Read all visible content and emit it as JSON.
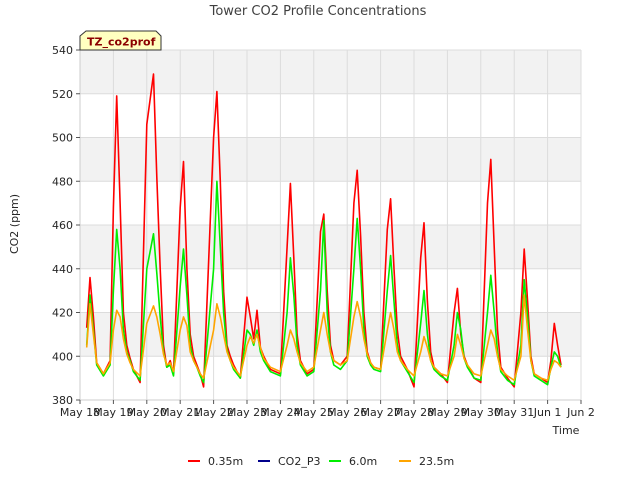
{
  "chart_data": {
    "type": "line",
    "title": "Tower CO2 Profile Concentrations",
    "xlabel": "Time",
    "ylabel": "CO2 (ppm)",
    "tag": "TZ_co2prof",
    "ylim": [
      380,
      540
    ],
    "yticks": [
      380,
      400,
      420,
      440,
      460,
      480,
      500,
      520,
      540
    ],
    "xlim": [
      0,
      15
    ],
    "xticks": [
      0,
      1,
      2,
      3,
      4,
      5,
      6,
      7,
      8,
      9,
      10,
      11,
      12,
      13,
      14,
      15
    ],
    "xtick_labels": [
      "May 18",
      "May 19",
      "May 20",
      "May 21",
      "May 22",
      "May 23",
      "May 24",
      "May 25",
      "May 26",
      "May 27",
      "May 28",
      "May 29",
      "May 30",
      "May 31",
      "Jun 1",
      "Jun 2"
    ],
    "grid": true,
    "x_unit": "days since May 18",
    "series": [
      {
        "name": "0.35m",
        "color": "#ff0000",
        "x": [
          0.2,
          0.3,
          0.4,
          0.5,
          0.7,
          0.9,
          1.0,
          1.1,
          1.2,
          1.3,
          1.4,
          1.5,
          1.6,
          1.8,
          2.0,
          2.2,
          2.3,
          2.4,
          2.5,
          2.6,
          2.7,
          2.8,
          3.0,
          3.1,
          3.2,
          3.3,
          3.4,
          3.5,
          3.6,
          3.7,
          4.0,
          4.1,
          4.2,
          4.3,
          4.4,
          4.5,
          4.6,
          4.8,
          5.0,
          5.1,
          5.2,
          5.3,
          5.4,
          5.5,
          5.7,
          6.0,
          6.2,
          6.3,
          6.4,
          6.5,
          6.6,
          6.8,
          7.0,
          7.2,
          7.3,
          7.4,
          7.5,
          7.6,
          7.8,
          8.0,
          8.2,
          8.3,
          8.4,
          8.5,
          8.6,
          8.7,
          8.8,
          9.0,
          9.2,
          9.3,
          9.4,
          9.5,
          9.6,
          9.8,
          10.0,
          10.2,
          10.3,
          10.4,
          10.5,
          10.6,
          10.8,
          11.0,
          11.2,
          11.3,
          11.4,
          11.5,
          11.6,
          11.8,
          12.0,
          12.2,
          12.3,
          12.4,
          12.5,
          12.6,
          12.8,
          13.0,
          13.2,
          13.3,
          13.4,
          13.5,
          13.6,
          13.8,
          14.0,
          14.1,
          14.2,
          14.3,
          14.4
        ],
        "values": [
          413,
          436,
          418,
          397,
          392,
          398,
          468,
          519,
          470,
          420,
          405,
          399,
          394,
          388,
          506,
          529,
          482,
          440,
          405,
          395,
          398,
          392,
          468,
          489,
          440,
          410,
          400,
          396,
          392,
          386,
          500,
          521,
          480,
          430,
          405,
          400,
          396,
          390,
          427,
          418,
          408,
          421,
          404,
          400,
          394,
          392,
          450,
          479,
          445,
          410,
          398,
          392,
          394,
          457,
          465,
          430,
          405,
          398,
          396,
          400,
          470,
          485,
          455,
          420,
          402,
          397,
          395,
          394,
          458,
          472,
          440,
          412,
          400,
          394,
          386,
          445,
          461,
          425,
          402,
          395,
          392,
          388,
          420,
          431,
          410,
          400,
          396,
          390,
          388,
          470,
          490,
          450,
          412,
          395,
          390,
          386,
          420,
          449,
          425,
          400,
          392,
          390,
          388,
          398,
          415,
          405,
          396
        ]
      },
      {
        "name": "CO2_P3",
        "color": "#00008b",
        "x": [],
        "values": []
      },
      {
        "name": "6.0m",
        "color": "#00ee00",
        "x": [
          0.2,
          0.3,
          0.4,
          0.5,
          0.7,
          0.9,
          1.0,
          1.1,
          1.2,
          1.3,
          1.4,
          1.5,
          1.6,
          1.8,
          2.0,
          2.2,
          2.3,
          2.4,
          2.5,
          2.6,
          2.7,
          2.8,
          3.0,
          3.1,
          3.2,
          3.3,
          3.4,
          3.5,
          3.6,
          3.7,
          4.0,
          4.1,
          4.2,
          4.3,
          4.4,
          4.5,
          4.6,
          4.8,
          5.0,
          5.1,
          5.2,
          5.3,
          5.4,
          5.5,
          5.7,
          6.0,
          6.2,
          6.3,
          6.4,
          6.5,
          6.6,
          6.8,
          7.0,
          7.2,
          7.3,
          7.4,
          7.5,
          7.6,
          7.8,
          8.0,
          8.2,
          8.3,
          8.4,
          8.5,
          8.6,
          8.7,
          8.8,
          9.0,
          9.2,
          9.3,
          9.4,
          9.5,
          9.6,
          9.8,
          10.0,
          10.2,
          10.3,
          10.4,
          10.5,
          10.6,
          10.8,
          11.0,
          11.2,
          11.3,
          11.4,
          11.5,
          11.6,
          11.8,
          12.0,
          12.2,
          12.3,
          12.4,
          12.5,
          12.6,
          12.8,
          13.0,
          13.2,
          13.3,
          13.4,
          13.5,
          13.6,
          13.8,
          14.0,
          14.1,
          14.2,
          14.3,
          14.4
        ],
        "values": [
          405,
          428,
          412,
          396,
          391,
          396,
          430,
          458,
          440,
          412,
          402,
          398,
          393,
          389,
          440,
          456,
          438,
          418,
          402,
          395,
          396,
          391,
          432,
          449,
          428,
          405,
          398,
          395,
          391,
          388,
          440,
          480,
          450,
          420,
          403,
          398,
          394,
          390,
          412,
          410,
          405,
          412,
          402,
          398,
          393,
          391,
          420,
          445,
          428,
          405,
          396,
          391,
          393,
          430,
          462,
          420,
          402,
          396,
          394,
          398,
          440,
          463,
          440,
          412,
          400,
          396,
          394,
          393,
          430,
          446,
          425,
          405,
          398,
          393,
          388,
          415,
          430,
          410,
          398,
          394,
          391,
          389,
          405,
          420,
          412,
          399,
          395,
          390,
          389,
          420,
          437,
          420,
          402,
          393,
          389,
          387,
          405,
          435,
          418,
          398,
          391,
          389,
          387,
          395,
          402,
          400,
          395
        ]
      },
      {
        "name": "23.5m",
        "color": "#ffa500",
        "x": [
          0.2,
          0.3,
          0.4,
          0.5,
          0.7,
          0.9,
          1.0,
          1.1,
          1.2,
          1.3,
          1.4,
          1.5,
          1.6,
          1.8,
          2.0,
          2.2,
          2.3,
          2.4,
          2.5,
          2.6,
          2.7,
          2.8,
          3.0,
          3.1,
          3.2,
          3.3,
          3.4,
          3.5,
          3.6,
          3.7,
          4.0,
          4.1,
          4.2,
          4.3,
          4.4,
          4.5,
          4.6,
          4.8,
          5.0,
          5.1,
          5.2,
          5.3,
          5.4,
          5.5,
          5.7,
          6.0,
          6.2,
          6.3,
          6.4,
          6.5,
          6.6,
          6.8,
          7.0,
          7.2,
          7.3,
          7.4,
          7.5,
          7.6,
          7.8,
          8.0,
          8.2,
          8.3,
          8.4,
          8.5,
          8.6,
          8.7,
          8.8,
          9.0,
          9.2,
          9.3,
          9.4,
          9.5,
          9.6,
          9.8,
          10.0,
          10.2,
          10.3,
          10.4,
          10.5,
          10.6,
          10.8,
          11.0,
          11.2,
          11.3,
          11.4,
          11.5,
          11.6,
          11.8,
          12.0,
          12.2,
          12.3,
          12.4,
          12.5,
          12.6,
          12.8,
          13.0,
          13.2,
          13.3,
          13.4,
          13.5,
          13.6,
          13.8,
          14.0,
          14.1,
          14.2,
          14.3,
          14.4
        ],
        "values": [
          404,
          424,
          410,
          397,
          392,
          397,
          412,
          421,
          418,
          408,
          401,
          397,
          394,
          391,
          415,
          423,
          418,
          410,
          401,
          396,
          397,
          393,
          412,
          418,
          414,
          402,
          398,
          395,
          392,
          390,
          412,
          424,
          418,
          410,
          402,
          398,
          395,
          391,
          405,
          409,
          406,
          410,
          404,
          399,
          395,
          393,
          405,
          412,
          408,
          402,
          397,
          393,
          395,
          412,
          420,
          410,
          402,
          398,
          396,
          398,
          418,
          425,
          418,
          408,
          401,
          397,
          395,
          394,
          412,
          420,
          412,
          402,
          398,
          394,
          391,
          402,
          409,
          404,
          398,
          395,
          392,
          391,
          400,
          410,
          405,
          399,
          396,
          392,
          391,
          405,
          412,
          408,
          400,
          394,
          391,
          389,
          400,
          428,
          412,
          398,
          392,
          390,
          389,
          394,
          398,
          397,
          395
        ]
      }
    ]
  }
}
